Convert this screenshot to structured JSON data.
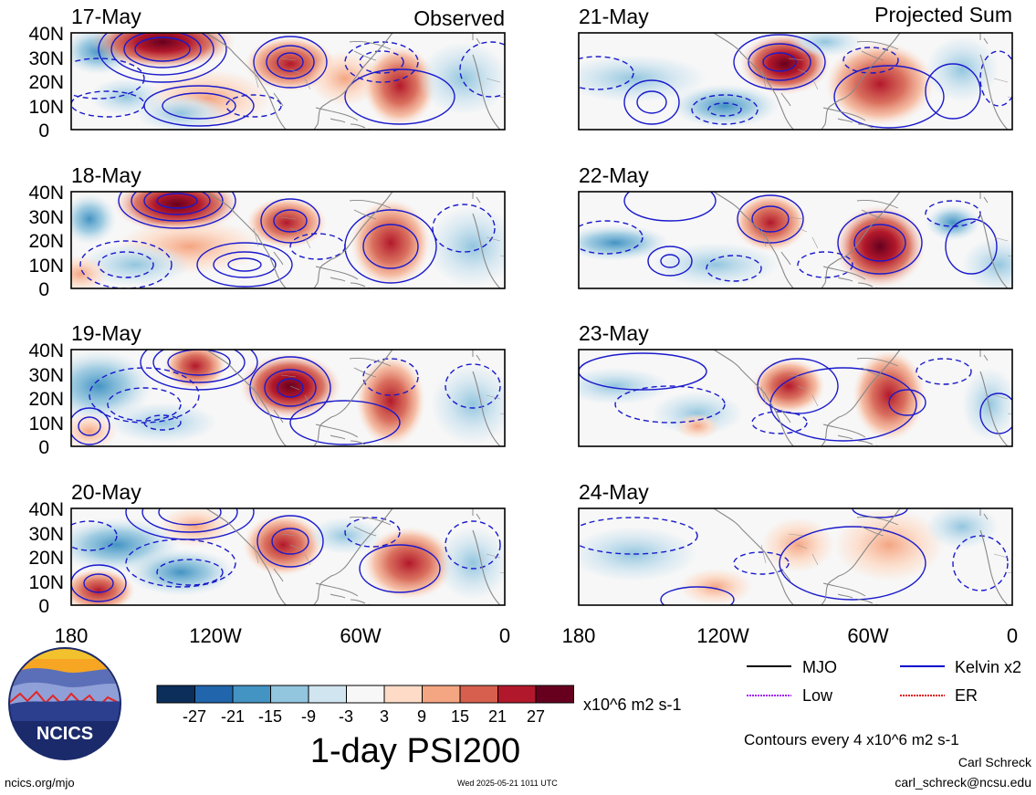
{
  "panel_titles": {
    "observed": "Observed",
    "projected": "Projected Sum"
  },
  "panels": [
    {
      "date": "17-May",
      "col": "observed"
    },
    {
      "date": "18-May",
      "col": "observed"
    },
    {
      "date": "19-May",
      "col": "observed"
    },
    {
      "date": "20-May",
      "col": "observed"
    },
    {
      "date": "21-May",
      "col": "projected"
    },
    {
      "date": "22-May",
      "col": "projected"
    },
    {
      "date": "23-May",
      "col": "projected"
    },
    {
      "date": "24-May",
      "col": "projected"
    }
  ],
  "lat_labels": [
    "40N",
    "30N",
    "20N",
    "10N",
    "0"
  ],
  "lon_labels": [
    "180",
    "120W",
    "60W",
    "0"
  ],
  "colorbar": {
    "colors": [
      "#0b2e5a",
      "#2166ac",
      "#4393c3",
      "#92c5de",
      "#d1e5f0",
      "#f7f7f7",
      "#fddbc7",
      "#f4a582",
      "#d6604d",
      "#b2182b",
      "#67001f"
    ],
    "tick_labels": [
      "-27",
      "-21",
      "-15",
      "-9",
      "-3",
      "3",
      "9",
      "15",
      "21",
      "27"
    ],
    "units": "x10^6 m2 s-1"
  },
  "main_title": "1-day PSI200",
  "legend": {
    "items": [
      {
        "label": "MJO",
        "color": "#000000"
      },
      {
        "label": "Kelvin x2",
        "color": "#0000cc"
      },
      {
        "label": "Low",
        "color": "#a020f0"
      },
      {
        "label": "ER",
        "color": "#dd1111"
      }
    ],
    "contour_note": "Contours every 4 x10^6 m2 s-1"
  },
  "logo_text": "NCICS",
  "footer": {
    "url": "ncics.org/mjo",
    "timestamp": "Wed 2025-05-21 1011 UTC",
    "author": "Carl Schreck",
    "email": "carl_schreck@ncsu.edu"
  }
}
